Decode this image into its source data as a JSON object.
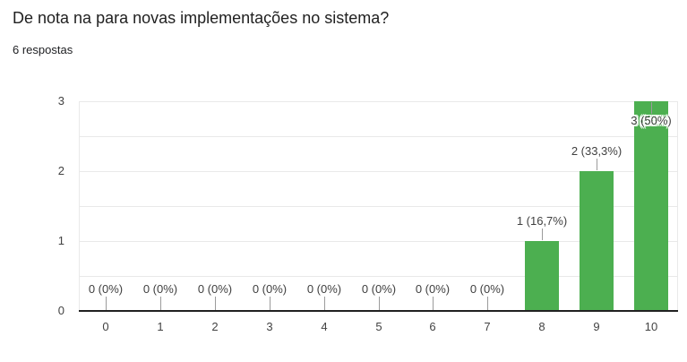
{
  "header": {
    "title": "De nota na para novas implementações no sistema?",
    "subtitle": "6 respostas"
  },
  "chart_data": {
    "type": "bar",
    "title": "De nota na para novas implementações no sistema?",
    "subtitle": "6 respostas",
    "categories": [
      "0",
      "1",
      "2",
      "3",
      "4",
      "5",
      "6",
      "7",
      "8",
      "9",
      "10"
    ],
    "values": [
      0,
      0,
      0,
      0,
      0,
      0,
      0,
      0,
      1,
      2,
      3
    ],
    "labels": [
      "0 (0%)",
      "0 (0%)",
      "0 (0%)",
      "0 (0%)",
      "0 (0%)",
      "0 (0%)",
      "0 (0%)",
      "0 (0%)",
      "1 (16,7%)",
      "2 (33,3%)",
      "3 (50%)"
    ],
    "xlabel": "",
    "ylabel": "",
    "y_ticks": [
      0,
      1,
      2,
      3
    ],
    "ylim": [
      0,
      3
    ],
    "gridline_step": 0.5,
    "grid": true,
    "legend": "none",
    "bar_color": "#4caf50"
  },
  "colors": {
    "bar": "#4caf50",
    "background": "#ffffff",
    "title_text": "#212121",
    "subtitle_text": "#202124",
    "axis_text": "#424242",
    "annotation_text": "#404040",
    "gridline": "#e9e9e9",
    "axis_line": "#212121",
    "stem": "#9b9b9b"
  }
}
